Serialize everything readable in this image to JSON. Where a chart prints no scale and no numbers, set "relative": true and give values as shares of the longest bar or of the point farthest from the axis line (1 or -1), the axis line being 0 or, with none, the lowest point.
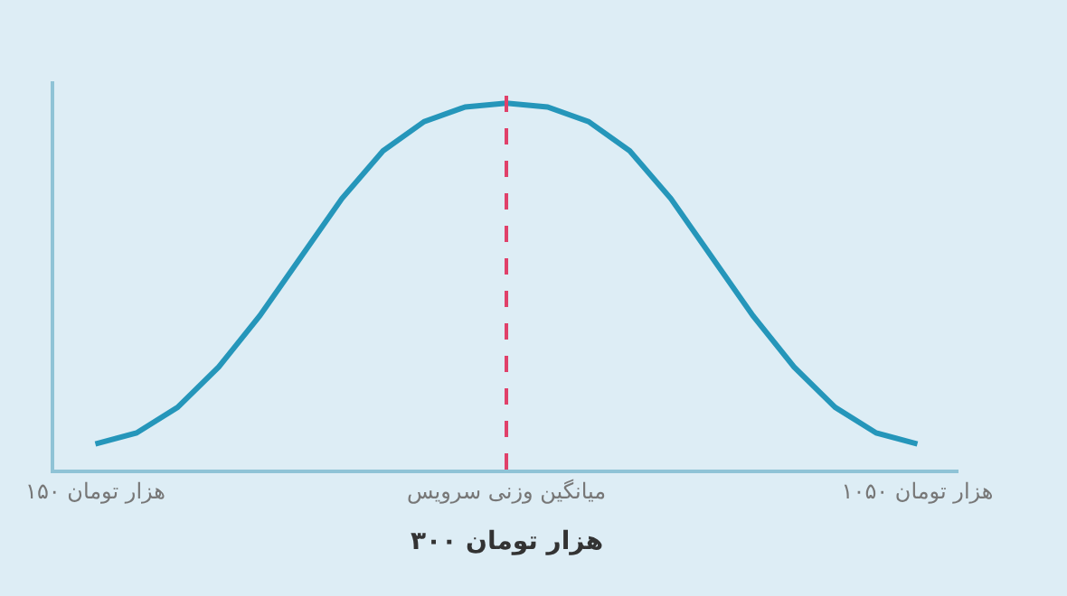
{
  "chart_data": {
    "type": "line",
    "relative": true,
    "marker": "none",
    "line_style": "solid",
    "grid": false,
    "categories": [
      "۱۵۰ هزار تومان",
      null,
      null,
      null,
      null,
      null,
      null,
      null,
      null,
      null,
      "میانگین وزنی سرویس",
      null,
      null,
      null,
      null,
      null,
      null,
      null,
      null,
      null,
      "۱۰۵۰ هزار تومان"
    ],
    "series": [
      {
        "color": "#2596ba",
        "values": [
          0.07,
          0.1,
          0.17,
          0.28,
          0.42,
          0.58,
          0.74,
          0.87,
          0.95,
          0.99,
          1,
          0.99,
          0.95,
          0.87,
          0.74,
          0.58,
          0.42,
          0.28,
          0.17,
          0.1,
          0.07
        ]
      }
    ],
    "ref_lines": [
      {
        "axis": "x",
        "value": "میانگین وزنی سرویس",
        "label": "۳۰۰ هزار تومان",
        "color": "#e0416a",
        "line_style": "dashed"
      }
    ]
  }
}
